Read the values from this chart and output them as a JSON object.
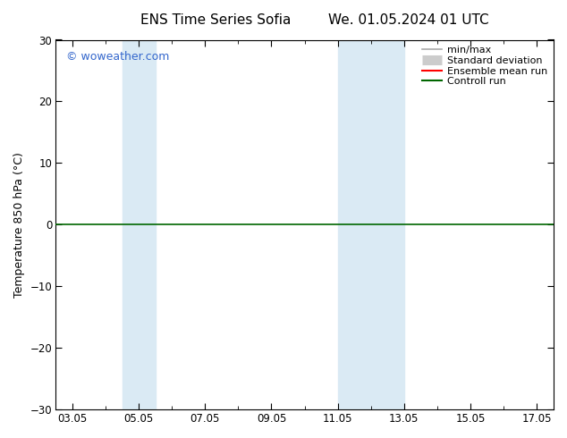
{
  "title_left": "ENS Time Series Sofia",
  "title_right": "We. 01.05.2024 01 UTC",
  "ylabel": "Temperature 850 hPa (°C)",
  "ylim": [
    -30,
    30
  ],
  "yticks": [
    -30,
    -20,
    -10,
    0,
    10,
    20,
    30
  ],
  "xmin": 2.5,
  "xmax": 17.5,
  "xtick_positions": [
    3.0,
    5.0,
    7.0,
    9.0,
    11.0,
    13.0,
    15.0,
    17.0
  ],
  "xtick_labels": [
    "03.05",
    "05.05",
    "07.05",
    "09.05",
    "11.05",
    "13.05",
    "15.05",
    "17.05"
  ],
  "shaded_bands": [
    {
      "xmin": 4.5,
      "xmax": 5.5
    },
    {
      "xmin": 11.0,
      "xmax": 13.0
    }
  ],
  "band_color": "#daeaf4",
  "zero_line_color": "#006600",
  "legend_items": [
    {
      "label": "min/max",
      "color": "#aaaaaa",
      "lw": 1.2,
      "type": "line"
    },
    {
      "label": "Standard deviation",
      "color": "#cccccc",
      "lw": 8,
      "type": "band"
    },
    {
      "label": "Ensemble mean run",
      "color": "#ff0000",
      "lw": 1.5,
      "type": "line"
    },
    {
      "label": "Controll run",
      "color": "#006600",
      "lw": 1.5,
      "type": "line"
    }
  ],
  "watermark": "© woweather.com",
  "watermark_color": "#3366cc",
  "bg_color": "#ffffff",
  "figsize": [
    6.34,
    4.9
  ],
  "dpi": 100,
  "title_fontsize": 11,
  "axis_fontsize": 9,
  "tick_fontsize": 8.5,
  "legend_fontsize": 8
}
